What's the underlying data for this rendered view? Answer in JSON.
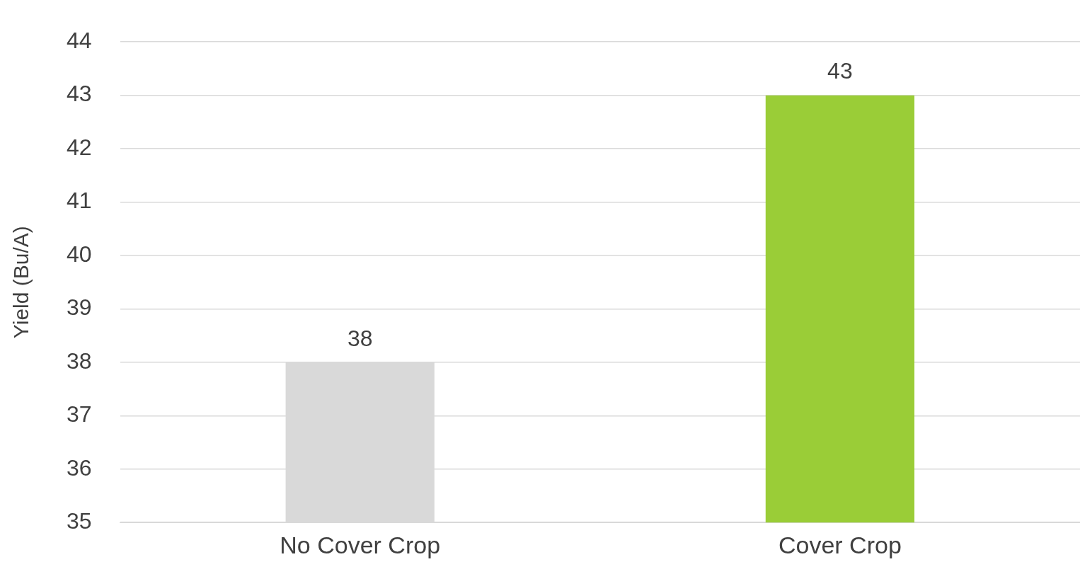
{
  "chart_data": {
    "type": "bar",
    "ylabel": "Yield (Bu/A)",
    "categories": [
      "No Cover Crop",
      "Cover Crop"
    ],
    "values": [
      38,
      43
    ],
    "colors": [
      "#d9d9d9",
      "#9acd37"
    ],
    "ylim": [
      35,
      44
    ],
    "yticks": [
      35,
      36,
      37,
      38,
      39,
      40,
      41,
      42,
      43,
      44
    ],
    "grid": "y",
    "data_labels": true
  }
}
